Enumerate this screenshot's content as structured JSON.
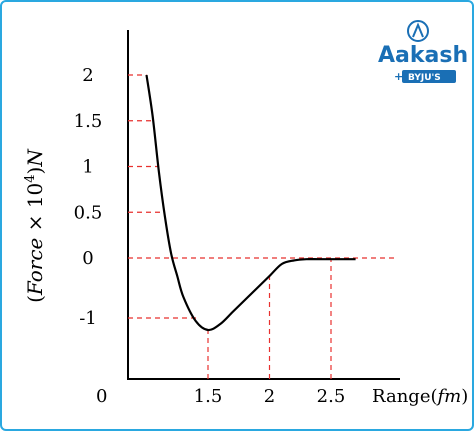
{
  "brand": {
    "name": "Aakash",
    "sub": "BYJU'S",
    "plus": "+",
    "color": "#1a6fb5"
  },
  "chart_data": {
    "type": "line",
    "ylabel": "(Force × 10⁴)N",
    "ylabel_parts": {
      "pre": "(",
      "word": "Force",
      "times": " × 10",
      "exp": "4",
      "post": ")",
      "unit": "N"
    },
    "xlabel": "Range(fm)",
    "xlabel_parts": {
      "word": "Range",
      "open": "(",
      "unit": "fm",
      "close": ")"
    },
    "origin_label": "0",
    "y_ticks": [
      {
        "value": 2,
        "label": "2"
      },
      {
        "value": 1.5,
        "label": "1.5"
      },
      {
        "value": 1,
        "label": "1"
      },
      {
        "value": 0.5,
        "label": "0.5"
      },
      {
        "value": 0,
        "label": "0"
      },
      {
        "value": -1,
        "label": "-1"
      }
    ],
    "x_ticks": [
      {
        "value": 1.5,
        "label": "1.5"
      },
      {
        "value": 2,
        "label": "2"
      },
      {
        "value": 2.5,
        "label": "2.5"
      }
    ],
    "series": [
      {
        "x": [
          1.0,
          1.05,
          1.1,
          1.15,
          1.2,
          1.25,
          1.3,
          1.4,
          1.5,
          1.6,
          1.7,
          1.8,
          1.9,
          2.0,
          2.1,
          2.2,
          2.3,
          2.4,
          2.5,
          2.6,
          2.7
        ],
        "y": [
          2.0,
          1.55,
          0.95,
          0.45,
          0.05,
          -0.3,
          -0.65,
          -1.05,
          -1.2,
          -1.1,
          -0.9,
          -0.7,
          -0.5,
          -0.3,
          -0.1,
          -0.04,
          -0.02,
          -0.02,
          -0.02,
          -0.02,
          -0.02
        ]
      }
    ],
    "guide_color": "#e8312f",
    "line_color": "#000000"
  }
}
